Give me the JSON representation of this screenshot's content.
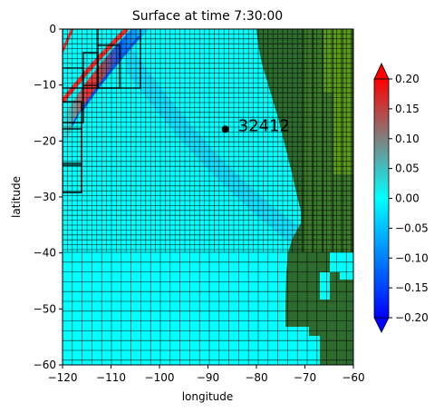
{
  "chart_data": {
    "type": "heatmap",
    "title": "Surface at time 7:30:00",
    "xlabel": "longitude",
    "ylabel": "latitude",
    "xlim": [
      -120,
      -60
    ],
    "ylim": [
      -60,
      0
    ],
    "xticks": [
      -120,
      -110,
      -100,
      -90,
      -80,
      -70,
      -60
    ],
    "yticks": [
      0,
      -10,
      -20,
      -30,
      -40,
      -50,
      -60
    ],
    "grid": false,
    "colorbar": {
      "min": -0.2,
      "max": 0.2,
      "ticks": [
        0.2,
        0.15,
        0.1,
        0.05,
        0.0,
        -0.05,
        -0.1,
        -0.15,
        -0.2
      ],
      "tick_labels": [
        "0.20",
        "0.15",
        "0.10",
        "0.05",
        "0.00",
        "−0.05",
        "−0.10",
        "−0.15",
        "−0.20"
      ],
      "extend": "both",
      "colors": {
        "min": "#0000ff",
        "low": "#0080ff",
        "zero": "#00ffff",
        "high": "#808080",
        "max": "#ff0000"
      }
    },
    "land_colors": [
      "#2e6b2e",
      "#3a7a2a",
      "#5a9a1a"
    ],
    "water_color": "#00ffff",
    "wave": {
      "leading_front": [
        [
          -118,
          0
        ],
        [
          -120,
          -4
        ]
      ],
      "peak_color": "#ff2a2a",
      "trough_color": "#0a60ff"
    },
    "gauges": [
      {
        "id": "32412",
        "lon": -86.4,
        "lat": -17.9
      }
    ]
  }
}
